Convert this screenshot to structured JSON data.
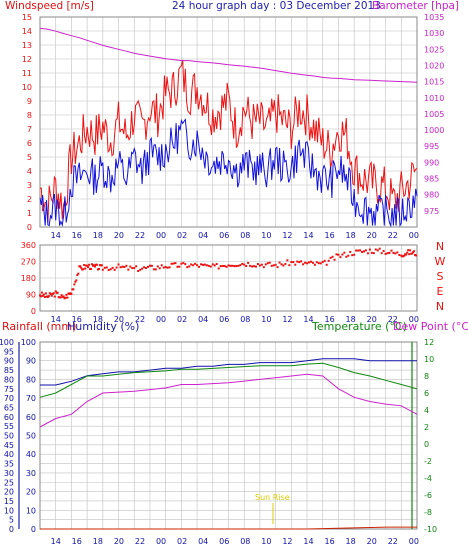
{
  "header": {
    "windspeed_label": "Windspeed [m/s]",
    "title": "24 hour graph day : 03 December 2013",
    "barometer_label": "Barometer [hpa]"
  },
  "compass_labels": [
    "N",
    "W",
    "S",
    "E",
    "N"
  ],
  "bottom_labels": {
    "rainfall": "Rainfall (mm)",
    "humidity": "Humidity (%)",
    "temperature": "Temperature (°C)",
    "dewpoint": "Dew Point (°C)"
  },
  "annotation": {
    "sunrise": "Sun Rise"
  },
  "colors": {
    "windspeed": "#ee1111",
    "windspeed_avg": "#1111dd",
    "barometer": "#cc22cc",
    "direction": "#ee1111",
    "rainfall": "#cc2200",
    "humidity": "#1111aa",
    "temperature": "#118811",
    "dewpoint": "#cc22cc",
    "grid": "#c0c0c0",
    "axis_x": "#1111aa",
    "sunrise": "#ddcc00"
  },
  "x_ticks": [
    "14",
    "16",
    "18",
    "20",
    "22",
    "00",
    "02",
    "04",
    "06",
    "08",
    "10",
    "12",
    "14",
    "16",
    "18",
    "20",
    "22",
    "00"
  ],
  "chart_data": [
    {
      "type": "line",
      "title": "24 hour graph day : 03 December 2013",
      "y_left_label": "Windspeed [m/s]",
      "y_left_range": [
        0,
        15
      ],
      "y_left_ticks": [
        0,
        1,
        2,
        3,
        4,
        5,
        6,
        7,
        8,
        9,
        10,
        11,
        12,
        13,
        14,
        15
      ],
      "y_right_label": "Barometer [hpa]",
      "y_right_range": [
        970,
        1035
      ],
      "y_right_ticks": [
        975,
        980,
        985,
        990,
        995,
        1000,
        1005,
        1010,
        1015,
        1020,
        1025,
        1030,
        1035
      ],
      "grid": true,
      "x_hours": [
        0,
        0.5,
        1,
        1.5,
        2,
        2.5,
        3,
        3.5,
        4,
        4.5,
        5,
        5.5,
        6,
        6.5,
        7,
        7.5,
        8,
        8.5,
        9,
        9.5,
        10,
        10.5,
        11,
        11.5,
        12,
        12.5,
        13,
        13.5,
        14,
        14.5,
        15,
        15.5,
        16,
        16.5,
        17,
        17.5,
        18,
        18.5,
        19,
        19.5,
        20,
        20.5,
        21,
        21.5,
        22,
        22.5,
        23,
        23.5,
        24
      ],
      "series": [
        {
          "values": [
            2.8,
            1.5,
            2.9,
            1.4,
            5,
            6,
            7,
            6.5,
            7.2,
            6.2,
            7.5,
            6.5,
            8,
            7,
            8.5,
            8,
            9.5,
            9.8,
            11,
            9.5,
            10,
            9,
            8,
            8.5,
            9,
            7,
            8.5,
            7.5,
            7.5,
            7,
            8.2,
            7.5,
            7,
            8.5,
            8,
            7,
            6,
            5.5,
            7,
            6.5,
            4.2,
            3.5,
            3.2,
            3,
            2.8,
            1.8,
            2.5,
            3.2,
            4.2
          ]
        },
        {
          "values": [
            1.5,
            0.8,
            1.5,
            0.5,
            3.2,
            3.5,
            4,
            3.5,
            4.2,
            3.5,
            4.5,
            3.5,
            5,
            4,
            5.2,
            5,
            5.5,
            6,
            7,
            6,
            6.2,
            5.2,
            4.5,
            4.8,
            5,
            4,
            4.5,
            4.2,
            4.2,
            4,
            5,
            4.2,
            4.2,
            5.5,
            4.8,
            4,
            3.5,
            3.2,
            4.2,
            3.5,
            2,
            1.5,
            1.2,
            1,
            1,
            0.8,
            1,
            1.5,
            2.2
          ]
        },
        {
          "values": [
            1031.5,
            1031.2,
            1030.6,
            1029.9,
            1029.2,
            1028.6,
            1027.8,
            1027,
            1026.2,
            1025.6,
            1025,
            1024.4,
            1023.8,
            1023.3,
            1022.9,
            1022.5,
            1022.1,
            1021.8,
            1021.5,
            1021.5,
            1021.2,
            1021,
            1020.8,
            1020.5,
            1020.2,
            1020,
            1019.8,
            1019.5,
            1019.2,
            1018.8,
            1018.4,
            1018,
            1017.6,
            1017.3,
            1017,
            1016.7,
            1016.3,
            1016.1,
            1016,
            1015.8,
            1015.6,
            1015.5,
            1015.4,
            1015.3,
            1015.2,
            1015.1,
            1015,
            1014.9,
            1014.8
          ]
        }
      ]
    },
    {
      "type": "scatter",
      "y_range": [
        0,
        360
      ],
      "y_ticks": [
        0,
        90,
        180,
        270,
        360
      ],
      "grid": true,
      "series": [
        {
          "x": [
            0,
            0.5,
            1,
            1.5,
            2,
            2.5,
            3,
            3.5,
            4,
            5,
            6,
            7,
            8,
            9,
            10,
            11,
            12,
            13,
            14,
            15,
            16,
            17,
            18,
            19,
            20,
            21,
            22,
            23,
            23.5,
            24
          ],
          "values": [
            90,
            80,
            95,
            70,
            100,
            230,
            245,
            240,
            235,
            240,
            230,
            235,
            245,
            250,
            250,
            240,
            255,
            260,
            255,
            250,
            265,
            260,
            255,
            300,
            320,
            330,
            325,
            310,
            320,
            315
          ]
        }
      ]
    },
    {
      "type": "line",
      "y_left_label": "Rainfall (mm)",
      "y_left_range": [
        0,
        100
      ],
      "y_left_ticks": [
        0,
        5,
        10,
        15,
        20,
        25,
        30,
        35,
        40,
        45,
        50,
        55,
        60,
        65,
        70,
        75,
        80,
        85,
        90,
        95,
        100
      ],
      "y_mid_ticks": [
        0,
        10,
        20,
        30,
        40,
        50,
        60,
        70,
        80,
        90,
        100
      ],
      "y_right_label": "Temperature (°C)",
      "y_right_range": [
        -10,
        12
      ],
      "y_right_ticks": [
        -10,
        -8,
        -6,
        -4,
        -2,
        0,
        2,
        4,
        6,
        8,
        10,
        12
      ],
      "grid": true,
      "x_hours": [
        0,
        1,
        2,
        3,
        4,
        5,
        6,
        7,
        8,
        9,
        10,
        11,
        12,
        13,
        14,
        15,
        16,
        17,
        18,
        19,
        20,
        21,
        22,
        23,
        24
      ],
      "series": [
        {
          "values": [
            0,
            0,
            0,
            0,
            0,
            0,
            0,
            0,
            0,
            0,
            0,
            0,
            0,
            0,
            0,
            0,
            0,
            0,
            0.2,
            0.4,
            0.6,
            0.8,
            1,
            1,
            1
          ]
        },
        {
          "values": [
            77,
            77,
            79,
            82,
            83,
            84,
            84,
            85,
            86,
            86,
            87,
            87,
            88,
            88,
            89,
            89,
            89,
            90,
            91,
            91,
            91,
            90,
            90,
            90,
            90
          ]
        },
        {
          "values": [
            5.5,
            6,
            7,
            8,
            8,
            8.2,
            8.4,
            8.5,
            8.6,
            8.8,
            8.8,
            8.9,
            9,
            9.1,
            9.2,
            9.2,
            9.2,
            9.4,
            9.5,
            9,
            8.4,
            8,
            7.5,
            7,
            6.5
          ]
        },
        {
          "values": [
            2,
            3,
            3.5,
            5,
            6,
            6.1,
            6.2,
            6.4,
            6.6,
            7,
            7,
            7.1,
            7.2,
            7.4,
            7.6,
            7.8,
            8,
            8.2,
            8,
            6.5,
            5.5,
            5,
            4.7,
            4.5,
            3.5
          ]
        }
      ]
    }
  ]
}
